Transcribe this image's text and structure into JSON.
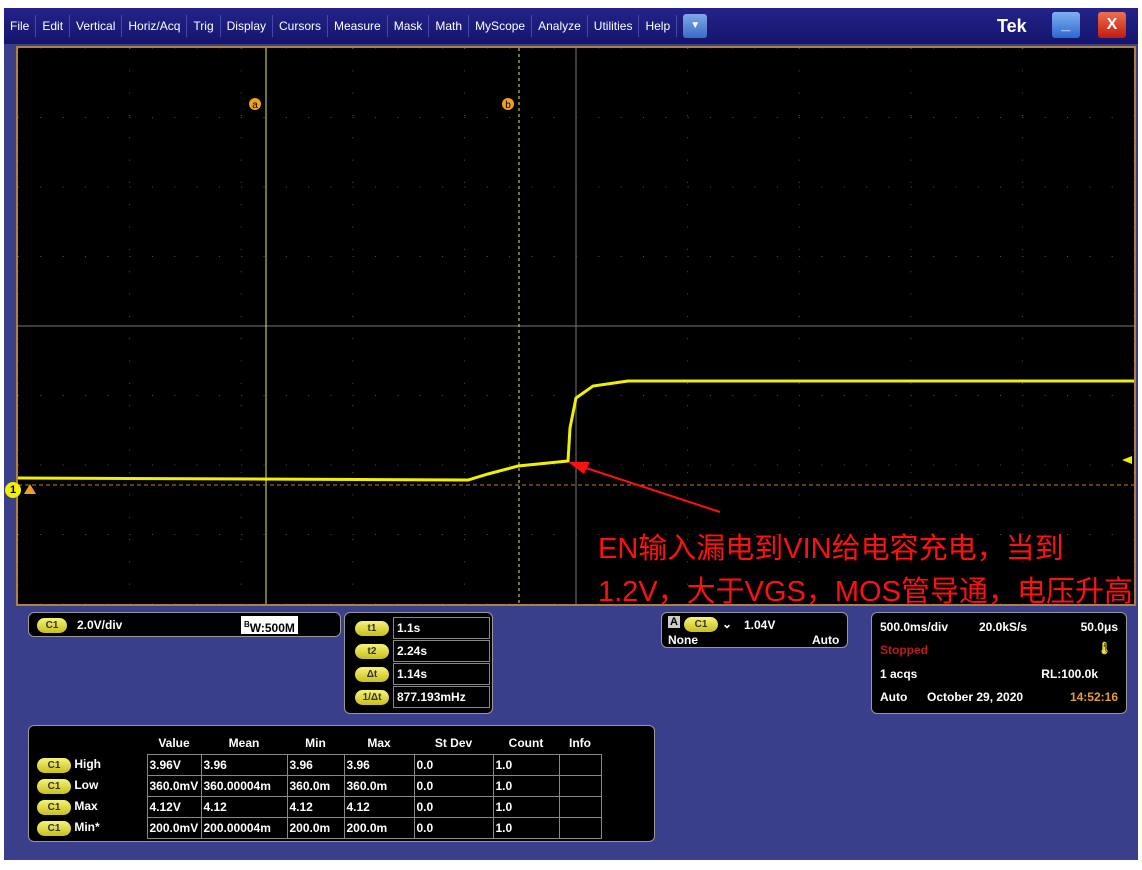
{
  "menu": {
    "items": [
      "File",
      "Edit",
      "Vertical",
      "Horiz/Acq",
      "Trig",
      "Display",
      "Cursors",
      "Measure",
      "Mask",
      "Math",
      "MyScope",
      "Analyze",
      "Utilities",
      "Help"
    ],
    "dropdown": "▼",
    "brand": "Tek",
    "minimize": "_",
    "close": "X"
  },
  "screen": {
    "cursor_a": "a",
    "cursor_b": "b",
    "channel_marker": "1",
    "trace_color": "#f0f000"
  },
  "vertical": {
    "channel": "C1",
    "scale": "2.0V/div",
    "bandwidth_b": "B",
    "bandwidth": "W:500M"
  },
  "cursors": [
    {
      "label": "t1",
      "value": "1.1s"
    },
    {
      "label": "t2",
      "value": "2.24s"
    },
    {
      "label": "Δt",
      "value": "1.14s"
    },
    {
      "label": "1/Δt",
      "value": "877.193mHz"
    }
  ],
  "trigger": {
    "mode_box": "A",
    "channel": "C1",
    "level": "1.04V",
    "coupling": "None",
    "mode": "Auto"
  },
  "horizontal": {
    "scale": "500.0ms/div",
    "rate": "20.0kS/s",
    "resolution": "50.0μs",
    "state": "Stopped",
    "acqs": "1 acqs",
    "record_length": "RL:100.0k",
    "run_mode": "Auto",
    "date": "October 29, 2020",
    "time": "14:52:16"
  },
  "measurements": {
    "headers": [
      "Value",
      "Mean",
      "Min",
      "Max",
      "St Dev",
      "Count",
      "Info"
    ],
    "rows": [
      {
        "ch": "C1",
        "name": "High",
        "cells": [
          "3.96V",
          "3.96",
          "3.96",
          "3.96",
          "0.0",
          "1.0",
          ""
        ]
      },
      {
        "ch": "C1",
        "name": "Low",
        "cells": [
          "360.0mV",
          "360.00004m",
          "360.0m",
          "360.0m",
          "0.0",
          "1.0",
          ""
        ]
      },
      {
        "ch": "C1",
        "name": "Max",
        "cells": [
          "4.12V",
          "4.12",
          "4.12",
          "4.12",
          "0.0",
          "1.0",
          ""
        ]
      },
      {
        "ch": "C1",
        "name": "Min*",
        "cells": [
          "200.0mV",
          "200.00004m",
          "200.0m",
          "200.0m",
          "0.0",
          "1.0",
          ""
        ]
      }
    ]
  },
  "annotation": {
    "text": "EN输入漏电到VIN给电容充电，当到1.2V，大于VGS，MOS管导通，电压升高",
    "color": "#ff1010"
  }
}
